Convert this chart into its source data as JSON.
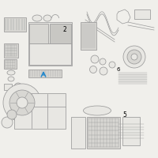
{
  "bg": "#f0efeb",
  "ec": "#9a9a9a",
  "fc": "#e8e7e3",
  "fc2": "#d8d7d3",
  "fc3": "#c8c7c3",
  "arrow_color": "#2288cc",
  "lw": 0.55,
  "fig_w": 2.0,
  "fig_h": 2.0,
  "dpi": 100
}
